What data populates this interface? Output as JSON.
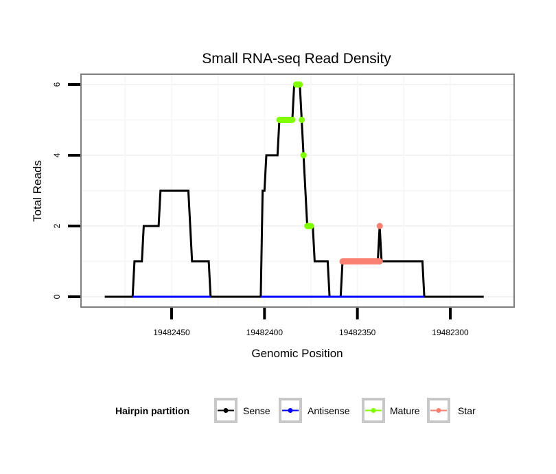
{
  "chart_data": {
    "type": "line",
    "title": "Small RNA-seq Read Density",
    "xlabel": "Genomic Position",
    "ylabel": "Total Reads",
    "x_reversed": true,
    "xlim": [
      19482497,
      19482273
    ],
    "ylim": [
      -0.3,
      6.3
    ],
    "x_ticks": [
      19482450,
      19482400,
      19482350,
      19482300
    ],
    "x_tick_labels": [
      "19482450",
      "19482400",
      "19482350",
      "19482300"
    ],
    "y_ticks": [
      0,
      2,
      4,
      6
    ],
    "y_tick_labels": [
      "0",
      "2",
      "4",
      "6"
    ],
    "grid": true,
    "legend": {
      "title": "Hairpin partition",
      "position": "bottom",
      "entries": [
        {
          "name": "Sense",
          "color": "#000000"
        },
        {
          "name": "Antisense",
          "color": "#0000ff"
        },
        {
          "name": "Mature",
          "color": "#7fff00"
        },
        {
          "name": "Star",
          "color": "#fa8072"
        }
      ]
    },
    "series": [
      {
        "name": "Sense",
        "color": "#000000",
        "points": [
          [
            19482486,
            0
          ],
          [
            19482471,
            0
          ],
          [
            19482470,
            1
          ],
          [
            19482466,
            1
          ],
          [
            19482465,
            2
          ],
          [
            19482457,
            2
          ],
          [
            19482456,
            3
          ],
          [
            19482441,
            3
          ],
          [
            19482439,
            1
          ],
          [
            19482430,
            1
          ],
          [
            19482429,
            0
          ],
          [
            19482402,
            0
          ],
          [
            19482401,
            3
          ],
          [
            19482400,
            3
          ],
          [
            19482399,
            4
          ],
          [
            19482393,
            4
          ],
          [
            19482392,
            5
          ],
          [
            19482385,
            5
          ],
          [
            19482384,
            6
          ],
          [
            19482381,
            6
          ],
          [
            19482380,
            5
          ],
          [
            19482379,
            4
          ],
          [
            19482377,
            2
          ],
          [
            19482374,
            2
          ],
          [
            19482373,
            1
          ],
          [
            19482366,
            1
          ],
          [
            19482365,
            0
          ],
          [
            19482359,
            0
          ],
          [
            19482358,
            1
          ],
          [
            19482339,
            1
          ],
          [
            19482338,
            2
          ],
          [
            19482337,
            1
          ],
          [
            19482315,
            1
          ],
          [
            19482314,
            0
          ],
          [
            19482282,
            0
          ]
        ]
      },
      {
        "name": "Antisense",
        "color": "#0000ff",
        "points": [
          [
            19482471,
            0
          ],
          [
            19482429,
            0
          ]
        ],
        "points_2": [
          [
            19482402,
            0
          ],
          [
            19482314,
            0
          ]
        ]
      },
      {
        "name": "Mature",
        "color": "#7fff00",
        "segments": [
          [
            [
              19482392,
              5
            ],
            [
              19482385,
              5
            ]
          ],
          [
            [
              19482383,
              6
            ],
            [
              19482381,
              6
            ]
          ],
          [
            [
              19482380,
              5
            ],
            [
              19482380,
              5
            ]
          ],
          [
            [
              19482379,
              4
            ],
            [
              19482379,
              4
            ]
          ],
          [
            [
              19482377,
              2
            ],
            [
              19482375,
              2
            ]
          ]
        ]
      },
      {
        "name": "Star",
        "color": "#fa8072",
        "segments": [
          [
            [
              19482358,
              1
            ],
            [
              19482338,
              1
            ]
          ],
          [
            [
              19482338,
              2
            ],
            [
              19482338,
              2
            ]
          ]
        ]
      }
    ]
  }
}
